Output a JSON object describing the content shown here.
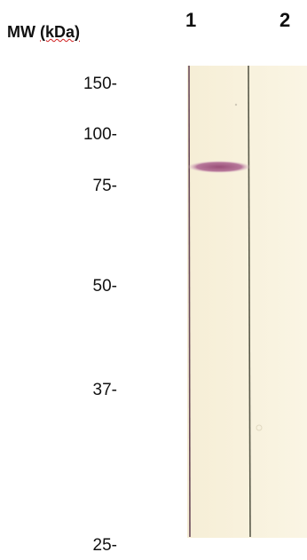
{
  "header": {
    "mw_label_prefix": "MW",
    "mw_label_unit": "(kDa)"
  },
  "lanes": [
    "1",
    "2"
  ],
  "markers": [
    "150-",
    "100-",
    "75-",
    "50-",
    "37-",
    "25-"
  ]
}
